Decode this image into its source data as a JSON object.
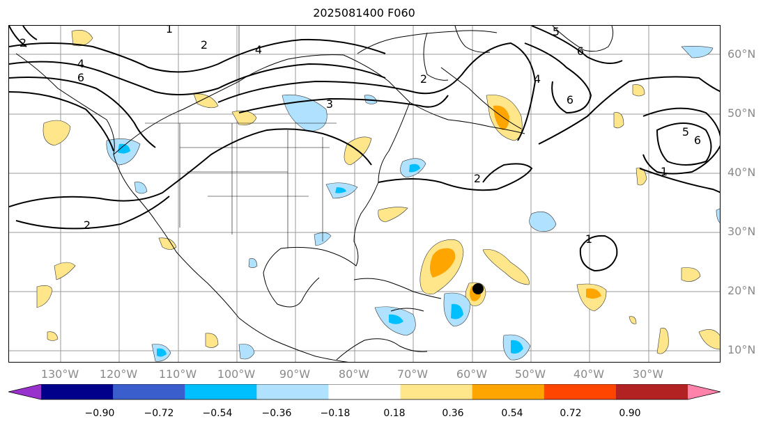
{
  "title": "2025081400 F060",
  "lat_labels": [
    "60°N",
    "50°N",
    "40°N",
    "30°N",
    "20°N",
    "10°N"
  ],
  "lon_labels": [
    "130°W",
    "120°W",
    "110°W",
    "100°W",
    "90°W",
    "80°W",
    "70°W",
    "60°W",
    "50°W",
    "40°W",
    "30°W"
  ],
  "contour_labels": [
    "1",
    "2",
    "2",
    "3",
    "4",
    "4",
    "6",
    "2",
    "2",
    "2",
    "1",
    "4",
    "5",
    "6",
    "6",
    "1",
    "5",
    "6"
  ],
  "colorbar": {
    "ticks": [
      "−0.90",
      "−0.72",
      "−0.54",
      "−0.36",
      "−0.18",
      "0.18",
      "0.36",
      "0.54",
      "0.72",
      "0.90"
    ],
    "colors": [
      "#9932cc",
      "#00008b",
      "#3a5fcd",
      "#00bfff",
      "#b0e2ff",
      "#ffffff",
      "#ffe68a",
      "#ffa500",
      "#ff4500",
      "#b22222",
      "#ff82ab"
    ]
  }
}
